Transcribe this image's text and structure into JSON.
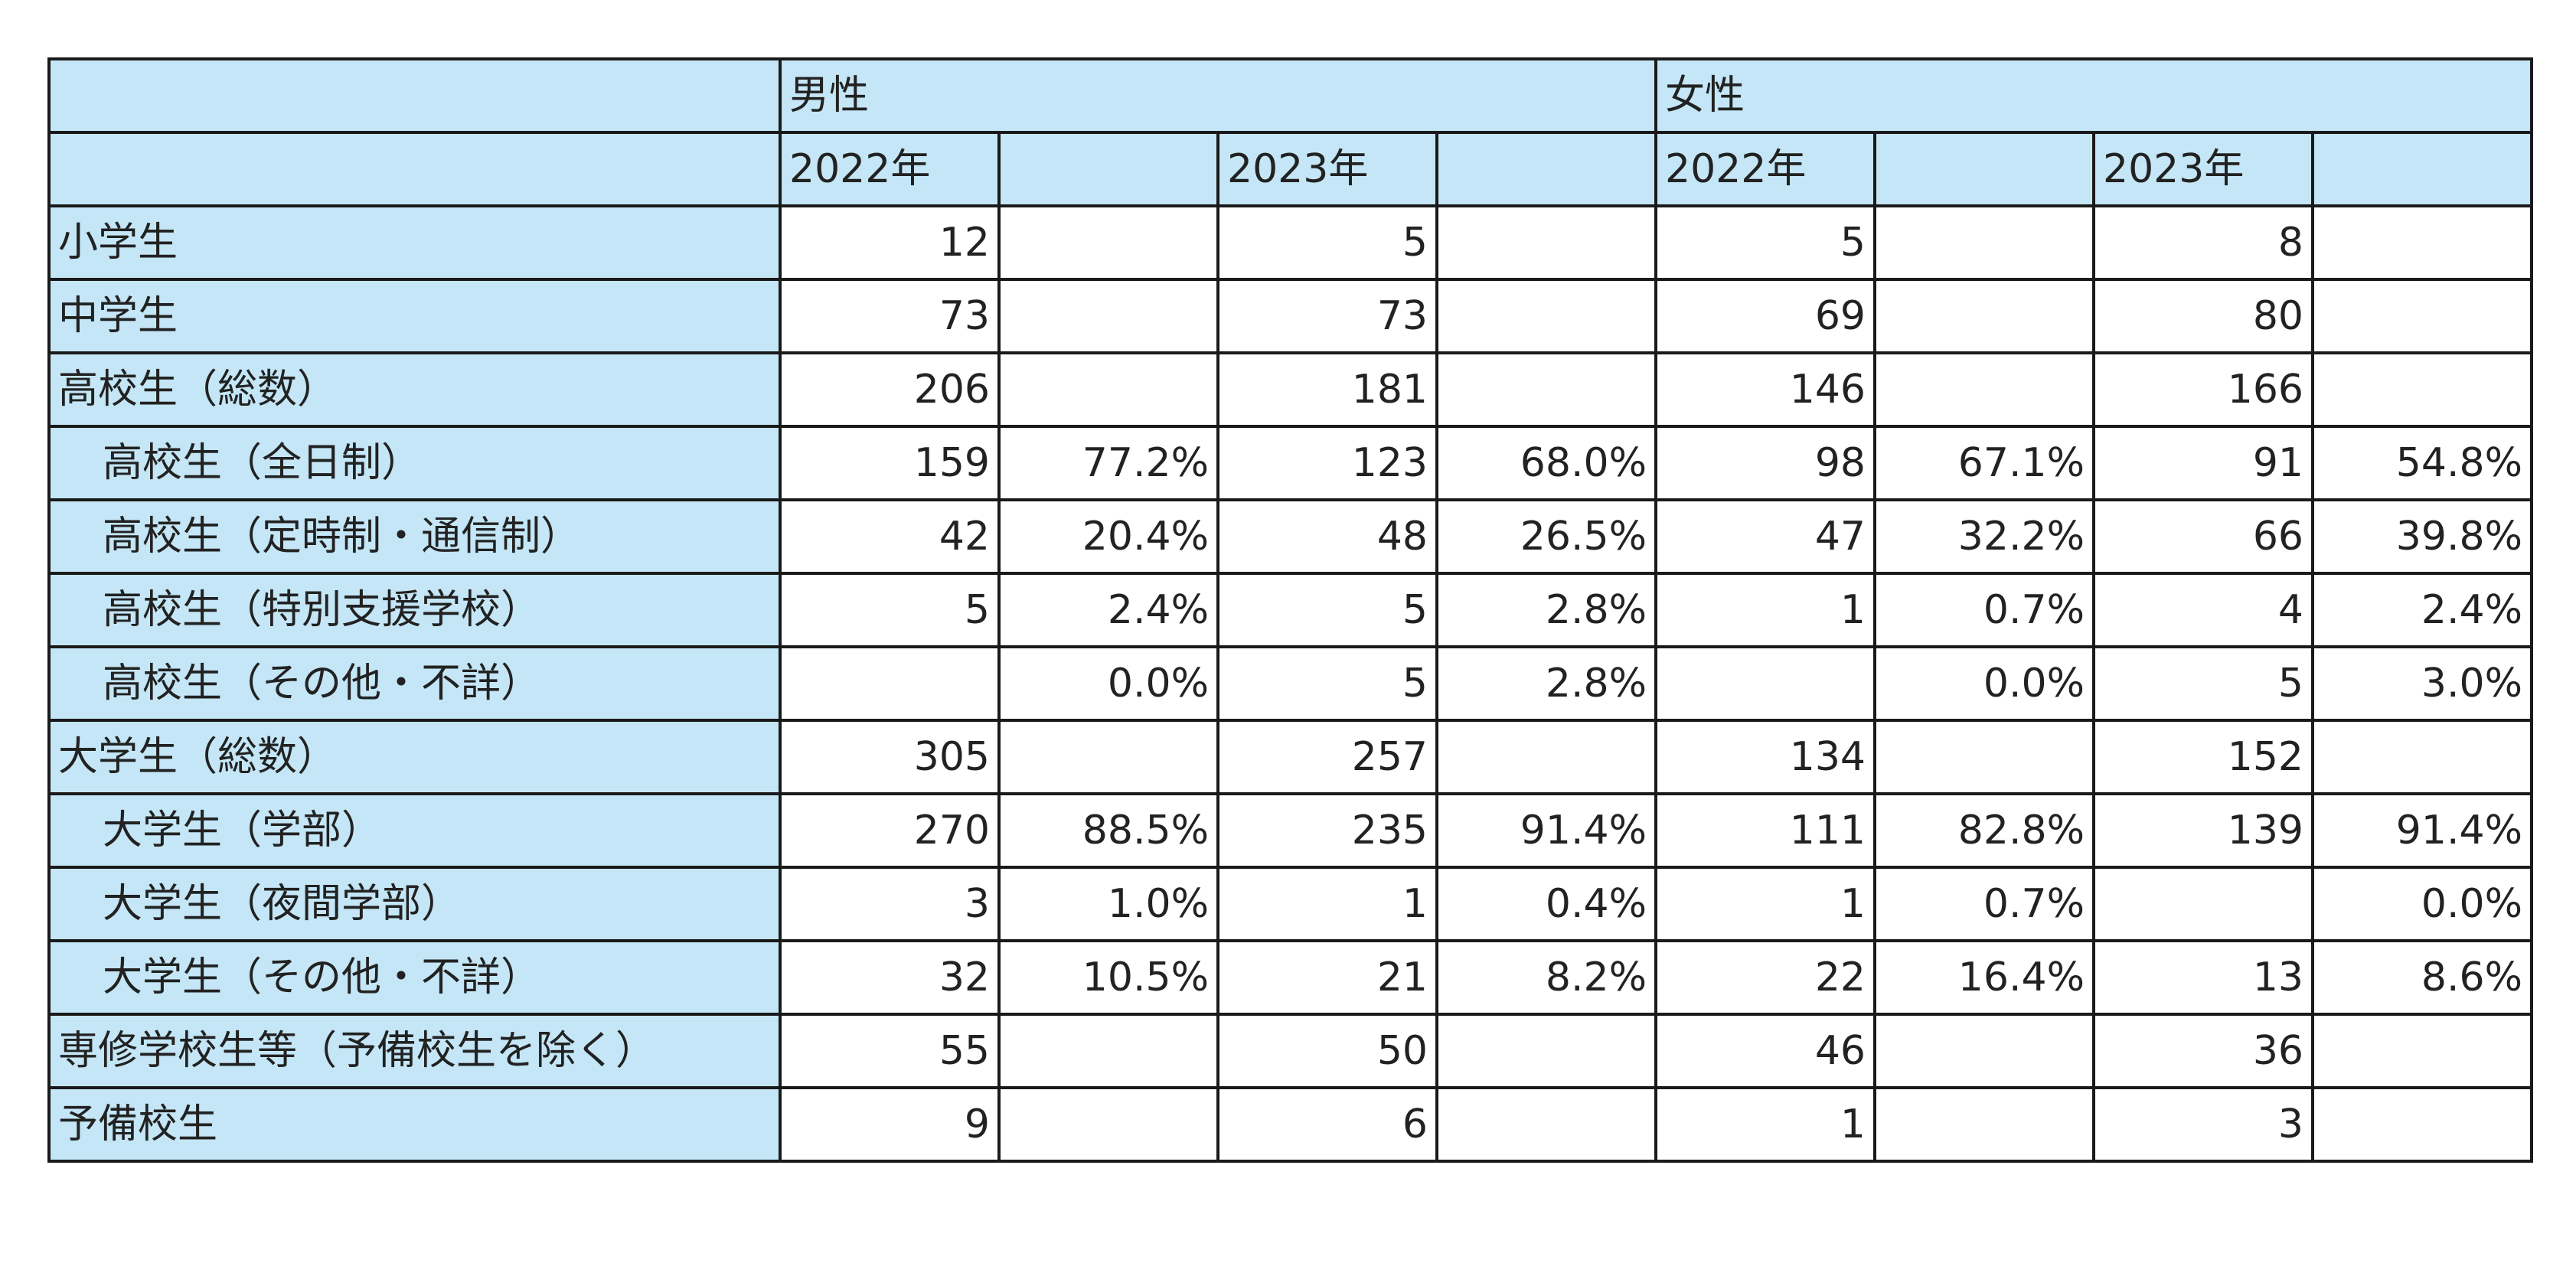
{
  "header": {
    "male": "男性",
    "female": "女性",
    "male_2022": "2022年",
    "male_2023": "2023年",
    "female_2022": "2022年",
    "female_2023": "2023年"
  },
  "rows": [
    {
      "label": "小学生",
      "indent": false,
      "m22": "12",
      "m22p": "",
      "m23": "5",
      "m23p": "",
      "f22": "5",
      "f22p": "",
      "f23": "8",
      "f23p": ""
    },
    {
      "label": "中学生",
      "indent": false,
      "m22": "73",
      "m22p": "",
      "m23": "73",
      "m23p": "",
      "f22": "69",
      "f22p": "",
      "f23": "80",
      "f23p": ""
    },
    {
      "label": "高校生（総数）",
      "indent": false,
      "m22": "206",
      "m22p": "",
      "m23": "181",
      "m23p": "",
      "f22": "146",
      "f22p": "",
      "f23": "166",
      "f23p": ""
    },
    {
      "label": "高校生（全日制）",
      "indent": true,
      "m22": "159",
      "m22p": "77.2%",
      "m23": "123",
      "m23p": "68.0%",
      "f22": "98",
      "f22p": "67.1%",
      "f23": "91",
      "f23p": "54.8%"
    },
    {
      "label": "高校生（定時制・通信制）",
      "indent": true,
      "m22": "42",
      "m22p": "20.4%",
      "m23": "48",
      "m23p": "26.5%",
      "f22": "47",
      "f22p": "32.2%",
      "f23": "66",
      "f23p": "39.8%"
    },
    {
      "label": "高校生（特別支援学校）",
      "indent": true,
      "m22": "5",
      "m22p": "2.4%",
      "m23": "5",
      "m23p": "2.8%",
      "f22": "1",
      "f22p": "0.7%",
      "f23": "4",
      "f23p": "2.4%"
    },
    {
      "label": "高校生（その他・不詳）",
      "indent": true,
      "m22": "",
      "m22p": "0.0%",
      "m23": "5",
      "m23p": "2.8%",
      "f22": "",
      "f22p": "0.0%",
      "f23": "5",
      "f23p": "3.0%"
    },
    {
      "label": "大学生（総数）",
      "indent": false,
      "m22": "305",
      "m22p": "",
      "m23": "257",
      "m23p": "",
      "f22": "134",
      "f22p": "",
      "f23": "152",
      "f23p": ""
    },
    {
      "label": "大学生（学部）",
      "indent": true,
      "m22": "270",
      "m22p": "88.5%",
      "m23": "235",
      "m23p": "91.4%",
      "f22": "111",
      "f22p": "82.8%",
      "f23": "139",
      "f23p": "91.4%"
    },
    {
      "label": "大学生（夜間学部）",
      "indent": true,
      "m22": "3",
      "m22p": "1.0%",
      "m23": "1",
      "m23p": "0.4%",
      "f22": "1",
      "f22p": "0.7%",
      "f23": "",
      "f23p": "0.0%"
    },
    {
      "label": "大学生（その他・不詳）",
      "indent": true,
      "m22": "32",
      "m22p": "10.5%",
      "m23": "21",
      "m23p": "8.2%",
      "f22": "22",
      "f22p": "16.4%",
      "f23": "13",
      "f23p": "8.6%"
    },
    {
      "label": "専修学校生等（予備校生を除く）",
      "indent": false,
      "m22": "55",
      "m22p": "",
      "m23": "50",
      "m23p": "",
      "f22": "46",
      "f22p": "",
      "f23": "36",
      "f23p": ""
    },
    {
      "label": "予備校生",
      "indent": false,
      "m22": "9",
      "m22p": "",
      "m23": "6",
      "m23p": "",
      "f22": "1",
      "f22p": "",
      "f23": "3",
      "f23p": ""
    }
  ]
}
